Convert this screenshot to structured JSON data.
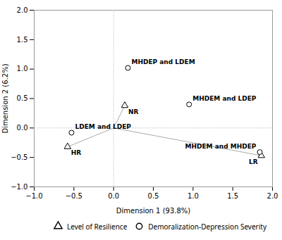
{
  "chart_data": {
    "type": "scatter",
    "xlabel": "Dimension 1 (93.8%)",
    "ylabel": "Dimension 2 (6.2%)",
    "xlim": [
      -1.0,
      2.0
    ],
    "ylim": [
      -1.0,
      2.0
    ],
    "xticks": [
      {
        "value": -1.0,
        "label": "−1.0"
      },
      {
        "value": -0.5,
        "label": "−0.5"
      },
      {
        "value": 0.0,
        "label": "0.0"
      },
      {
        "value": 0.5,
        "label": "0.5"
      },
      {
        "value": 1.0,
        "label": "1.0"
      },
      {
        "value": 1.5,
        "label": "1.5"
      },
      {
        "value": 2.0,
        "label": "2.0"
      }
    ],
    "yticks": [
      {
        "value": -1.0,
        "label": "−1.0"
      },
      {
        "value": -0.5,
        "label": "−0.5"
      },
      {
        "value": 0.0,
        "label": "0.0"
      },
      {
        "value": 0.5,
        "label": "0.5"
      },
      {
        "value": 1.0,
        "label": "1.0"
      },
      {
        "value": 1.5,
        "label": "1.5"
      },
      {
        "value": 2.0,
        "label": "2.0"
      }
    ],
    "grid": false,
    "legend": "lower right",
    "series": [
      {
        "name": "Level of Resilience",
        "marker": "triangle",
        "values": [
          {
            "x": 0.14,
            "y": 0.38,
            "label": "NR"
          },
          {
            "x": -0.58,
            "y": -0.32,
            "label": "HR"
          },
          {
            "x": 1.86,
            "y": -0.47,
            "label": "LR"
          }
        ]
      },
      {
        "name": "Demoralization-Depression Severity",
        "marker": "circle",
        "values": [
          {
            "x": 0.18,
            "y": 1.02,
            "label": "MHDEP and LDEM"
          },
          {
            "x": -0.53,
            "y": -0.08,
            "label": "LDEM and LDEP"
          },
          {
            "x": 0.95,
            "y": 0.4,
            "label": "MHDEM and LDEP"
          },
          {
            "x": 1.84,
            "y": -0.41,
            "label": "MHDEM and MHDEP"
          }
        ]
      }
    ],
    "lines": [
      {
        "x1": 0.0,
        "y1": 0.0,
        "x2": 0.14,
        "y2": 0.38
      },
      {
        "x1": 0.0,
        "y1": 0.0,
        "x2": -0.58,
        "y2": -0.32
      },
      {
        "x1": 0.0,
        "y1": 0.0,
        "x2": 1.86,
        "y2": -0.47
      }
    ],
    "rules": {
      "x": [
        0.0
      ],
      "y": [
        0.0
      ]
    }
  }
}
